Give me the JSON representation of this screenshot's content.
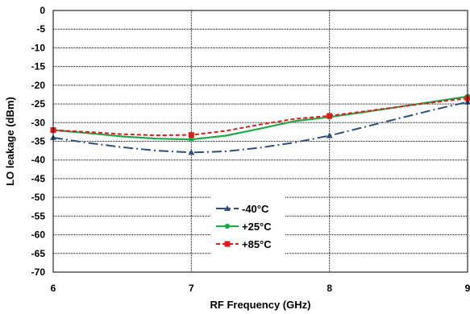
{
  "chart_data": {
    "type": "line",
    "title": "",
    "xlabel": "RF Frequency (GHz)",
    "ylabel": "LO leakage (dBm)",
    "xlim": [
      6,
      9
    ],
    "ylim": [
      -70,
      0
    ],
    "xticks": [
      6,
      7,
      8,
      9
    ],
    "yticks": [
      0,
      -5,
      -10,
      -15,
      -20,
      -25,
      -30,
      -35,
      -40,
      -45,
      -50,
      -55,
      -60,
      -65,
      -70
    ],
    "x_tick_labels": [
      "6",
      "7",
      "8",
      "9"
    ],
    "y_tick_labels": [
      "0",
      "-5",
      "-10",
      "-15",
      "-20",
      "-25",
      "-30",
      "-35",
      "-40",
      "-45",
      "-50",
      "-55",
      "-60",
      "-65",
      "-70"
    ],
    "grid": "vertical dotted at major x ticks, horizontal dotted at every y tick",
    "legend_position": "lower-center",
    "series": [
      {
        "name": "-40°C",
        "color": "#2e4f7c",
        "marker": "triangle",
        "line_style": "dash-dot",
        "x": [
          6,
          7,
          8,
          9
        ],
        "y": [
          -34,
          -38,
          -33.5,
          -24.5
        ],
        "curve_x": [
          6,
          6.25,
          6.5,
          6.75,
          7,
          7.25,
          7.5,
          7.75,
          8,
          8.25,
          8.5,
          8.75,
          9
        ],
        "curve_y": [
          -34,
          -35.4,
          -36.6,
          -37.5,
          -38,
          -37.7,
          -36.7,
          -35.3,
          -33.5,
          -31.2,
          -28.9,
          -26.6,
          -24.5
        ]
      },
      {
        "name": "+25°C",
        "color": "#1fa84a",
        "marker": "circle",
        "line_style": "solid",
        "x": [
          6,
          7,
          8,
          9
        ],
        "y": [
          -32,
          -34.5,
          -28.5,
          -23
        ],
        "curve_x": [
          6,
          6.25,
          6.5,
          6.75,
          7,
          7.25,
          7.5,
          7.75,
          8,
          8.25,
          8.5,
          8.75,
          9
        ],
        "curve_y": [
          -32,
          -32.8,
          -33.7,
          -34.3,
          -34.5,
          -33.5,
          -31.6,
          -29.6,
          -28.5,
          -27.2,
          -25.8,
          -24.4,
          -23
        ]
      },
      {
        "name": "+85°C",
        "color": "#e01b1b",
        "marker": "square",
        "line_style": "dashed",
        "x": [
          6,
          7,
          8,
          9
        ],
        "y": [
          -32,
          -33.3,
          -28.2,
          -23.5
        ],
        "curve_x": [
          6,
          6.25,
          6.5,
          6.75,
          7,
          7.25,
          7.5,
          7.75,
          8,
          8.25,
          8.5,
          8.75,
          9
        ],
        "curve_y": [
          -32,
          -32.5,
          -33.1,
          -33.4,
          -33.3,
          -32.2,
          -30.5,
          -29,
          -28.2,
          -27,
          -25.8,
          -24.6,
          -23.5
        ]
      }
    ]
  }
}
